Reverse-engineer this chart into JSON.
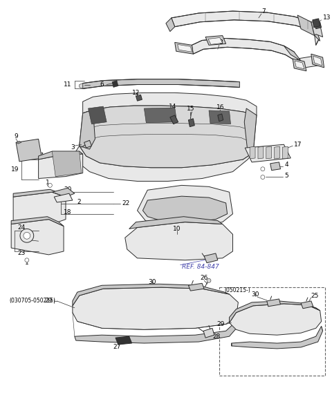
{
  "bg_color": "#ffffff",
  "line_color": "#2a2a2a",
  "label_color": "#000000",
  "ref_color": "#4444aa",
  "fig_width": 4.8,
  "fig_height": 5.88,
  "dpi": 100,
  "gray_fill": "#d8d8d8",
  "gray_fill2": "#c8c8c8",
  "gray_fill3": "#e8e8e8",
  "white_fill": "#f2f2f2",
  "label_fs": 6.5,
  "small_fs": 5.5
}
